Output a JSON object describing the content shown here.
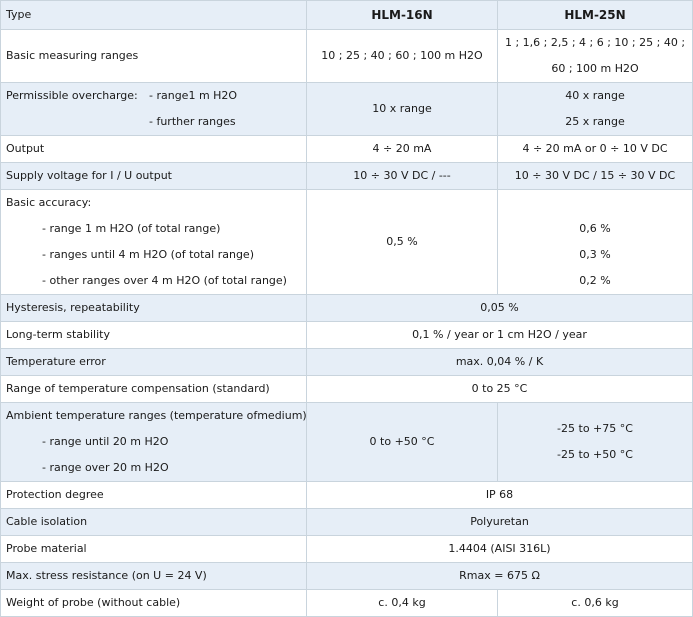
{
  "header": {
    "type_label": "Type",
    "col1": "HLM-16N",
    "col2": "HLM-25N"
  },
  "rows": {
    "basic_ranges": {
      "label": "Basic measuring ranges",
      "col1": "10 ; 25 ; 40 ; 60 ; 100 m H2O",
      "col2_line1": "1 ; 1,6 ; 2,5 ; 4 ; 6 ; 10 ; 25 ; 40 ;",
      "col2_line2": "60 ; 100 m H2O"
    },
    "overcharge": {
      "label": "Permissible overcharge:",
      "sub1": "- range1 m H2O",
      "sub2": "- further ranges",
      "col1": "10 x range",
      "col2_line1": "40 x range",
      "col2_line2": "25 x range"
    },
    "output": {
      "label": "Output",
      "col1": "4 ÷ 20 mA",
      "col2": "4 ÷ 20 mA or 0 ÷ 10 V DC"
    },
    "supply": {
      "label": "Supply voltage for I / U output",
      "col1": "10 ÷ 30 V DC / ---",
      "col2": "10 ÷ 30 V DC / 15 ÷ 30 V DC"
    },
    "accuracy": {
      "label": "Basic accuracy:",
      "sub1": "- range 1 m H2O (of total range)",
      "sub2": "- ranges until 4 m H2O (of total range)",
      "sub3": "- other ranges over 4 m H2O (of total range)",
      "col1": "0,5 %",
      "col2_line1": "0,6 %",
      "col2_line2": "0,3 %",
      "col2_line3": "0,2 %"
    },
    "hysteresis": {
      "label": "Hysteresis, repeatability",
      "value": "0,05 %"
    },
    "stability": {
      "label": "Long-term stability",
      "value": "0,1 % / year or 1 cm H2O / year"
    },
    "temp_error": {
      "label": "Temperature error",
      "value": "max. 0,04 % / K"
    },
    "temp_comp": {
      "label": "Range of temperature compensation (standard)",
      "value": "0 to 25 °C"
    },
    "ambient": {
      "label": "Ambient temperature ranges (temperature ofmedium):",
      "sub1": "- range until 20 m H2O",
      "sub2": "- range over 20 m H2O",
      "col1": "0 to +50 °C",
      "col2_line1": "-25 to +75 °C",
      "col2_line2": "-25 to +50 °C"
    },
    "protection": {
      "label": "Protection degree",
      "value": "IP 68"
    },
    "cable": {
      "label": "Cable isolation",
      "value": "Polyuretan"
    },
    "probe": {
      "label": "Probe material",
      "value": "1.4404 (AISI 316L)"
    },
    "stress": {
      "label": "Max. stress resistance (on U = 24 V)",
      "value": "Rmax = 675 Ω"
    },
    "weight": {
      "label": "Weight of probe (without cable)",
      "col1": "c. 0,4 kg",
      "col2": "c. 0,6 kg"
    }
  }
}
